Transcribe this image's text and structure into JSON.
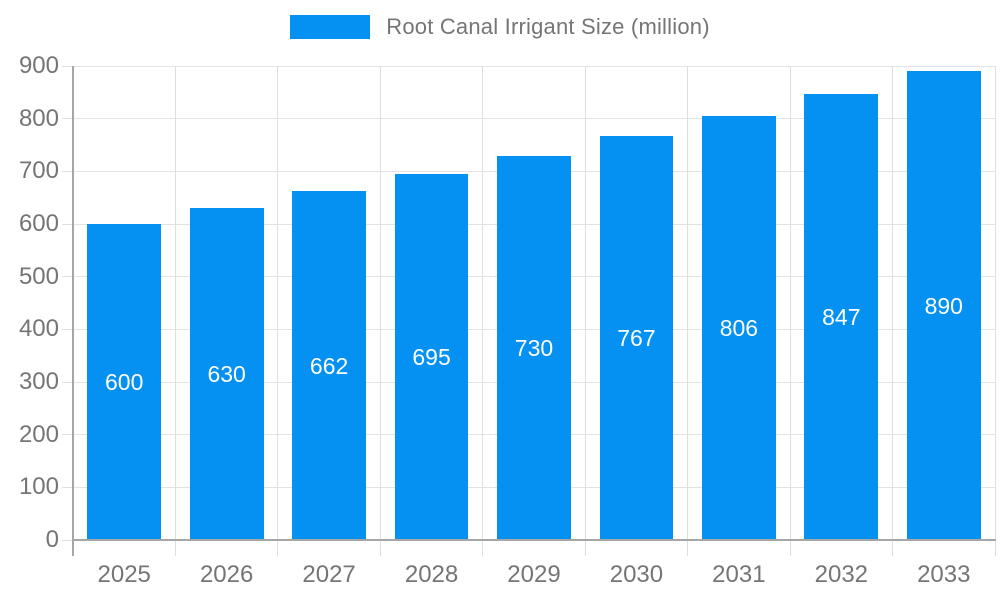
{
  "legend": {
    "label": "Root Canal Irrigant Size (million)"
  },
  "colors": {
    "bar": "#0591f2",
    "axis": "#a6a6a6",
    "grid": "#e3e3e3",
    "tick_text": "#757575",
    "bar_label_text": "#ffffff",
    "background": "#ffffff"
  },
  "chart_data": {
    "type": "bar",
    "title": "Root Canal Irrigant Size (million)",
    "categories": [
      "2025",
      "2026",
      "2027",
      "2028",
      "2029",
      "2030",
      "2031",
      "2032",
      "2033"
    ],
    "values": [
      600,
      630,
      662,
      695,
      730,
      767,
      806,
      847,
      890
    ],
    "xlabel": "",
    "ylabel": "",
    "ylim": [
      0,
      900
    ],
    "ytick_step": 100,
    "ytick_labels": [
      "0",
      "100",
      "200",
      "300",
      "400",
      "500",
      "600",
      "700",
      "800",
      "900"
    ],
    "grid": true,
    "legend_position": "top",
    "bar_labels_inside": true
  }
}
